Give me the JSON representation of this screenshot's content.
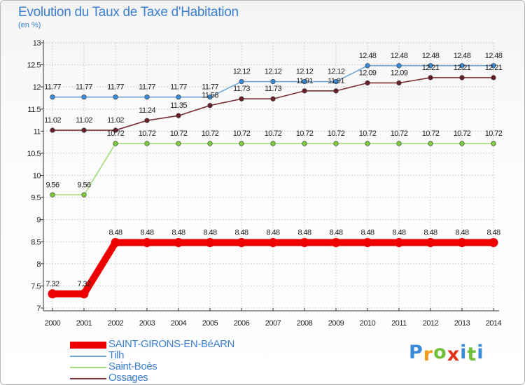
{
  "title": "Evolution du Taux de Taxe d'Habitation",
  "subtitle": "(en %)",
  "logo": {
    "letters": [
      "P",
      "r",
      "o",
      "x",
      "i",
      "t",
      "i"
    ],
    "colors": [
      "#3b8ad8",
      "#f29a1e",
      "#6fbf3b",
      "#e5321d",
      "#3b8ad8",
      "#6fbf3b",
      "#3b8ad8"
    ]
  },
  "chart_data": {
    "type": "line",
    "title": "Evolution du Taux de Taxe d'Habitation",
    "ylabel": "(en %)",
    "xlabel": "",
    "categories": [
      "2000",
      "2001",
      "2002",
      "2003",
      "2004",
      "2005",
      "2006",
      "2007",
      "2008",
      "2009",
      "2010",
      "2011",
      "2012",
      "2013",
      "2014"
    ],
    "ylim": [
      7,
      13
    ],
    "yticks": [
      "7",
      "7.5",
      "8",
      "8.5",
      "9",
      "9.5",
      "10",
      "10.5",
      "11",
      "11.5",
      "12",
      "12.5",
      "13"
    ],
    "grid": true,
    "legend_position": "bottom-left",
    "series": [
      {
        "name": "SAINT-GIRONS-EN-BéARN",
        "color": "#ee0000",
        "marker_color": "#ee0000",
        "values": [
          7.32,
          7.32,
          8.48,
          8.48,
          8.48,
          8.48,
          8.48,
          8.48,
          8.48,
          8.48,
          8.48,
          8.48,
          8.48,
          8.48,
          8.48
        ],
        "labels": [
          "7.32",
          "7.32",
          "8.48",
          "8.48",
          "8.48",
          "8.48",
          "8.48",
          "8.48",
          "8.48",
          "8.48",
          "8.48",
          "8.48",
          "8.48",
          "8.48",
          "8.48"
        ]
      },
      {
        "name": "Tilh",
        "color": "#6fa8d8",
        "marker_color": "#3b8ad8",
        "values": [
          11.77,
          11.77,
          11.77,
          11.77,
          11.77,
          11.77,
          12.12,
          12.12,
          12.12,
          12.12,
          12.48,
          12.48,
          12.48,
          12.48,
          12.48
        ],
        "labels": [
          "11.77",
          "11.77",
          "11.77",
          "11.77",
          "11.77",
          "11.77",
          "12.12",
          "12.12",
          "12.12",
          "12.12",
          "12.48",
          "12.48",
          "12.48",
          "12.48",
          "12.48"
        ]
      },
      {
        "name": "Saint-Boès",
        "color": "#a6db7c",
        "marker_color": "#7ccb3c",
        "values": [
          9.56,
          9.56,
          10.72,
          10.72,
          10.72,
          10.72,
          10.72,
          10.72,
          10.72,
          10.72,
          10.72,
          10.72,
          10.72,
          10.72,
          10.72
        ],
        "labels": [
          "9.56",
          "9.56",
          "10.72",
          "10.72",
          "10.72",
          "10.72",
          "10.72",
          "10.72",
          "10.72",
          "10.72",
          "10.72",
          "10.72",
          "10.72",
          "10.72",
          "10.72"
        ]
      },
      {
        "name": "Ossages",
        "color": "#7a2e36",
        "marker_color": "#6a1f28",
        "values": [
          11.02,
          11.02,
          11.02,
          11.24,
          11.35,
          11.58,
          11.73,
          11.73,
          11.91,
          11.91,
          12.09,
          12.09,
          12.21,
          12.21,
          12.21
        ],
        "labels": [
          "11.02",
          "11.02",
          "11.02",
          "11.24",
          "11.35",
          "11.58",
          "11.73",
          "11.73",
          "11.91",
          "11.91",
          "12.09",
          "12.09",
          "12.21",
          "12.21",
          "12.21"
        ]
      }
    ]
  }
}
